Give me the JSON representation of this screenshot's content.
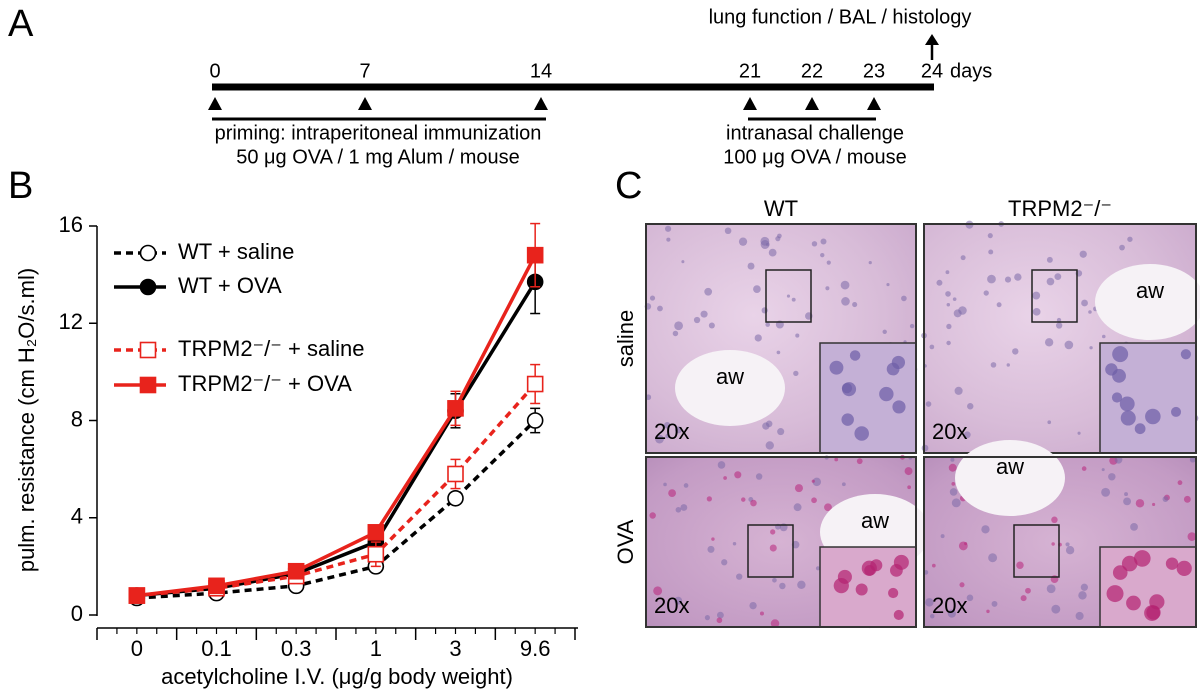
{
  "panel_labels": [
    "A",
    "B",
    "C"
  ],
  "timeline": {
    "days": [
      0,
      7,
      14,
      21,
      22,
      23,
      24
    ],
    "unit": "days",
    "endpoint": "lung function / BAL / histology",
    "priming": [
      "priming: intraperitoneal immunization",
      "50 μg OVA / 1 mg Alum / mouse"
    ],
    "challenge": [
      "intranasal challenge",
      "100 μg OVA / mouse"
    ]
  },
  "chart_data": {
    "type": "line",
    "x_label": "acetylcholine I.V. (μg/g body weight)",
    "y_label": "pulm. resistance (cm H₂O/s.ml)",
    "categories": [
      "0",
      "0.1",
      "0.3",
      "1",
      "3",
      "9.6"
    ],
    "ylim": [
      0,
      16
    ],
    "yticks": [
      0,
      4,
      8,
      12,
      16
    ],
    "series": [
      {
        "name": "WT + saline",
        "color": "#000000",
        "dashed": true,
        "marker": "circle",
        "filled": false,
        "values": [
          0.7,
          0.9,
          1.2,
          2.0,
          4.8,
          8.0
        ],
        "errors": [
          0.1,
          0.1,
          0.1,
          0.2,
          0.2,
          0.5
        ]
      },
      {
        "name": "WT + OVA",
        "color": "#000000",
        "dashed": false,
        "marker": "circle",
        "filled": true,
        "values": [
          0.8,
          1.1,
          1.7,
          3.0,
          8.4,
          13.7
        ],
        "errors": [
          0.1,
          0.1,
          0.1,
          0.3,
          0.7,
          1.3
        ]
      },
      {
        "name": "TRPM2⁻/⁻ + saline",
        "color": "#e8231c",
        "dashed": true,
        "marker": "square",
        "filled": false,
        "values": [
          0.8,
          1.1,
          1.6,
          2.5,
          5.8,
          9.5
        ],
        "errors": [
          0.1,
          0.1,
          0.2,
          0.5,
          0.6,
          0.8
        ]
      },
      {
        "name": "TRPM2⁻/⁻ + OVA",
        "color": "#e8231c",
        "dashed": false,
        "marker": "square",
        "filled": true,
        "values": [
          0.8,
          1.2,
          1.8,
          3.4,
          8.5,
          14.8
        ],
        "errors": [
          0.1,
          0.1,
          0.1,
          0.2,
          0.7,
          1.3
        ]
      }
    ]
  },
  "histology": {
    "columns": [
      "WT",
      "TRPM2⁻/⁻"
    ],
    "rows": [
      "saline",
      "OVA"
    ],
    "airway": "aw",
    "magnification": "20x"
  }
}
